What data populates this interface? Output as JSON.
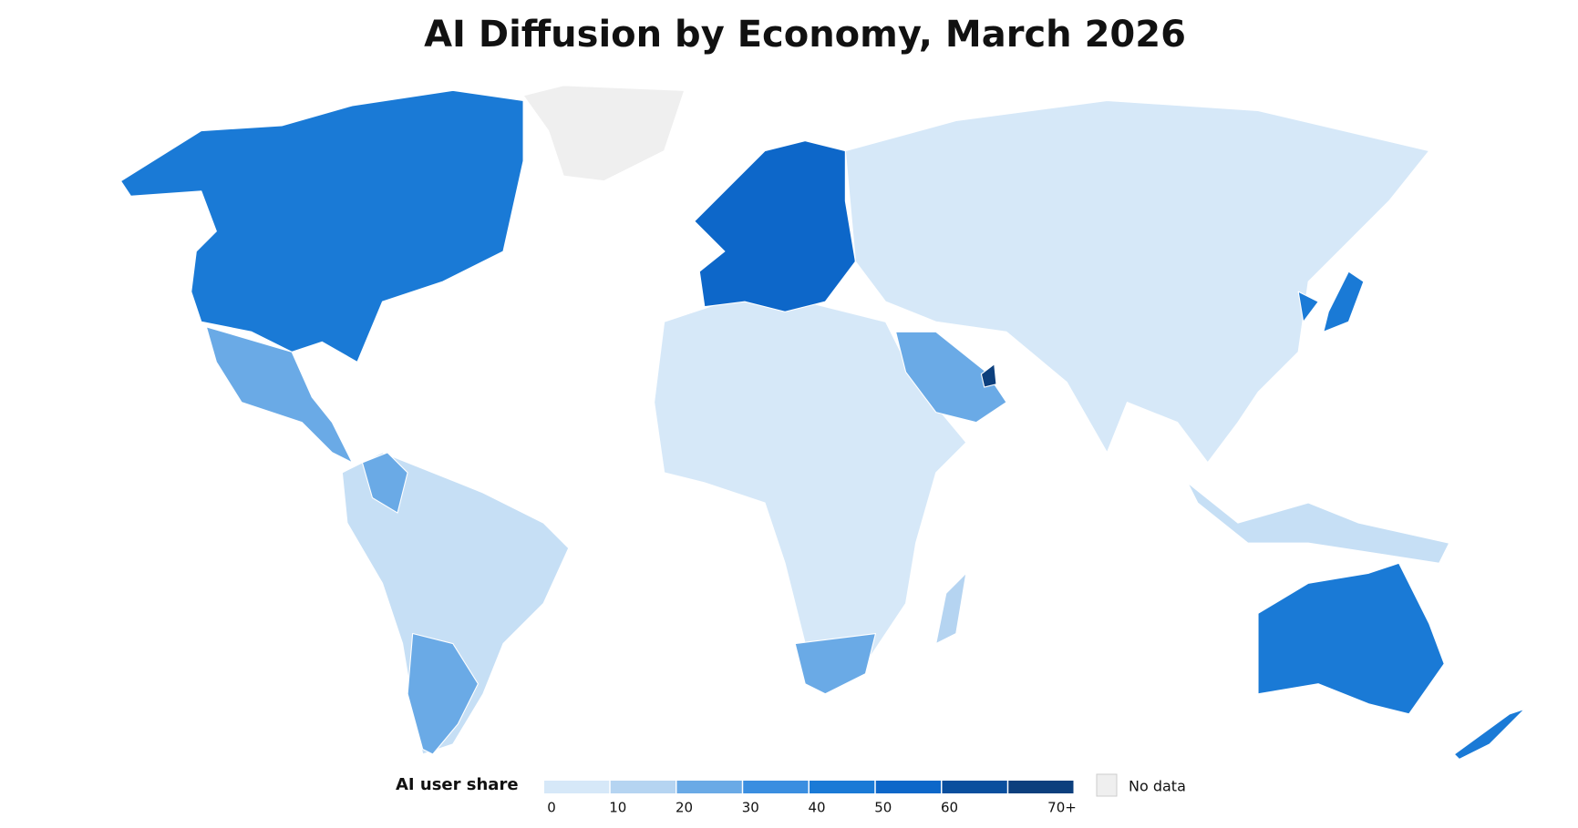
{
  "chart_data": {
    "type": "map",
    "title": "AI Diffusion by Economy, March 2026",
    "legend": {
      "title": "AI user share",
      "colors": [
        "#d6e8f8",
        "#b5d4f1",
        "#6aaae6",
        "#3a8ee0",
        "#1a7ad6",
        "#0d67c9",
        "#0a4f9e",
        "#0c3f7d"
      ],
      "ticks": [
        0,
        10,
        20,
        30,
        40,
        50,
        60,
        {
          "value": 70,
          "label": "70+"
        }
      ],
      "no_data_label": "No data",
      "no_data_color": "#efefef"
    }
  }
}
